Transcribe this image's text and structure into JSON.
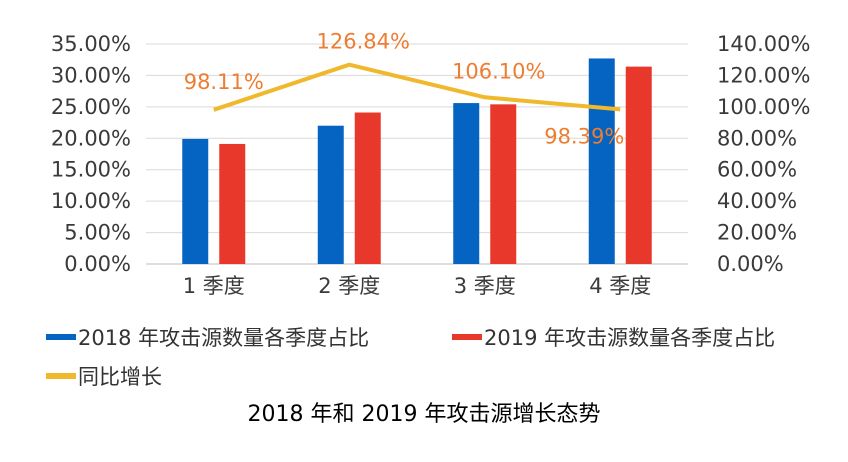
{
  "chart_data": {
    "type": "bar",
    "categories": [
      "1 季度",
      "2 季度",
      "3 季度",
      "4 季度"
    ],
    "series": [
      {
        "name": "2018 年攻击源数量各季度占比",
        "type": "bar",
        "axis": "left",
        "values": [
          19.9,
          22.0,
          25.6,
          32.7
        ],
        "color": "#0563C1"
      },
      {
        "name": "2019 年攻击源数量各季度占比",
        "type": "bar",
        "axis": "left",
        "values": [
          19.1,
          24.1,
          25.4,
          31.4
        ],
        "color": "#E8382B"
      },
      {
        "name": "同比增长",
        "type": "line",
        "axis": "right",
        "values": [
          98.11,
          126.84,
          106.1,
          98.39
        ],
        "color": "#F0B82C"
      }
    ],
    "line_labels": [
      "98.11%",
      "126.84%",
      "106.10%",
      "98.39%"
    ],
    "left_axis": {
      "ylim": [
        0,
        35
      ],
      "ticks": [
        "0.00%",
        "5.00%",
        "10.00%",
        "15.00%",
        "20.00%",
        "25.00%",
        "30.00%",
        "35.00%"
      ]
    },
    "right_axis": {
      "ylim": [
        0,
        140
      ],
      "ticks": [
        "0.00%",
        "20.00%",
        "40.00%",
        "60.00%",
        "80.00%",
        "100.00%",
        "120.00%",
        "140.00%"
      ]
    },
    "grid": true,
    "legend_position": "bottom",
    "label_color": "#ED7D31"
  },
  "caption": "2018 年和 2019 年攻击源增长态势"
}
